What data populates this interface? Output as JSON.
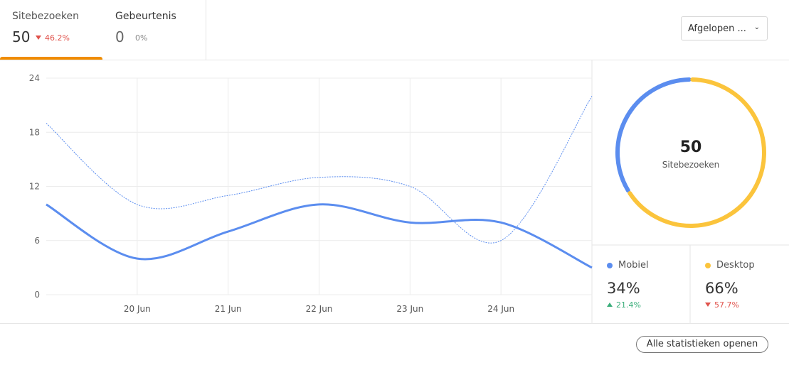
{
  "tabs": [
    {
      "label": "Sitebezoeken",
      "value": 50,
      "change": "46.2%",
      "direction": "down",
      "active": true
    },
    {
      "label": "Gebeurtenis",
      "value": 0,
      "change": "0%",
      "direction": "none",
      "active": false
    }
  ],
  "dropdown": "Afgelopen ...",
  "button": "Alle statistieken openen",
  "chart_data": [
    {
      "type": "line",
      "categories": [
        null,
        "20 Jun",
        "21 Jun",
        "22 Jun",
        "23 Jun",
        "24 Jun",
        null
      ],
      "series": [
        {
          "color": "#5b8def",
          "style": "solid",
          "values": [
            10,
            4,
            7,
            10,
            8,
            8,
            3
          ]
        },
        {
          "color": "#5b8def",
          "style": "dotted",
          "values": [
            19,
            10,
            11,
            13,
            12,
            6,
            22
          ]
        }
      ],
      "ylim": [
        0,
        24
      ],
      "yticks": [
        0,
        6,
        12,
        18,
        24
      ],
      "grid": true
    },
    {
      "type": "pie",
      "total": 50,
      "total_label": "Sitebezoeken",
      "categories": [
        "Mobiel",
        "Desktop"
      ],
      "values": [
        34,
        66
      ],
      "value_labels": [
        "34%",
        "66%"
      ],
      "colors": [
        "#5b8def",
        "#fbc43c"
      ],
      "change_labels": [
        "21.4%",
        "57.7%"
      ],
      "change_directions": [
        "up",
        "down"
      ]
    }
  ]
}
